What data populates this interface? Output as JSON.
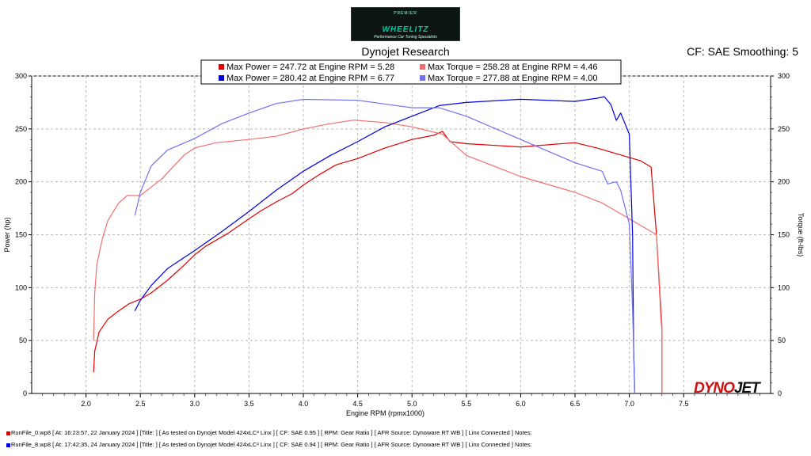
{
  "logo": {
    "top_text": "PREMIER",
    "brand": "WHEELITZ",
    "tagline": "Performance Car Tuning Specialists"
  },
  "header": {
    "title": "Dynojet Research",
    "cf_smoothing": "CF: SAE Smoothing: 5"
  },
  "footer_logo": {
    "part1": "DYNO",
    "part2": "JET"
  },
  "runs": [
    {
      "label": "RunFile_0.wp8 [ At: 16:23:57, 22 January 2024 ] [Title: ]  [ As tested on Dynojet Model 424xLC² Linx ] [ CF: SAE 0.95 ] [ RPM: Gear Ratio ] [ AFR Source: Dynoware RT WB ] [ Linx Connected ] Notes:",
      "color": "#e00000"
    },
    {
      "label": "RunFile_8.wp8 [ At: 17:42:35, 24 January 2024 ] [Title: ]  [ As tested on Dynojet Model 424xLC² Linx ] [ CF: SAE 0.94 ] [ RPM: Gear Ratio ] [ AFR Source: Dynoware RT WB ] [ Linx Connected ] Notes:",
      "color": "#0000dd"
    }
  ],
  "chart_data": {
    "type": "line",
    "xlabel": "Engine RPM (rpmx1000)",
    "ylabel": "Power (hp)",
    "y2label": "Torque (ft-lbs)",
    "xlim": [
      1.5,
      8.3
    ],
    "ylim": [
      0,
      300
    ],
    "y2lim": [
      0,
      300
    ],
    "x_ticks": [
      "2.0",
      "2.5",
      "3.0",
      "3.5",
      "4.0",
      "4.5",
      "5.0",
      "5.5",
      "6.0",
      "6.5",
      "7.0",
      "7.5"
    ],
    "y_ticks": [
      "0",
      "50",
      "100",
      "150",
      "200",
      "250",
      "300"
    ],
    "y2_ticks": [
      "0",
      "50",
      "100",
      "150",
      "200",
      "250",
      "300"
    ],
    "grid": true,
    "legend": {
      "placement": "top-center",
      "entries": [
        {
          "text": "Max Power = 247.72 at Engine RPM = 5.28",
          "color": "#e00000"
        },
        {
          "text": "Max Torque = 258.28 at Engine RPM = 4.46",
          "color": "#f07070"
        },
        {
          "text": "Max Power = 280.42 at Engine RPM = 6.77",
          "color": "#0000dd"
        },
        {
          "text": "Max Torque = 277.88 at Engine RPM = 4.00",
          "color": "#7070f0"
        }
      ]
    },
    "series": [
      {
        "name": "Max Power = 247.72 at Engine RPM = 5.28",
        "axis": "left",
        "color": "#e00000",
        "x": [
          2.07,
          2.08,
          2.12,
          2.2,
          2.3,
          2.4,
          2.5,
          2.6,
          2.75,
          2.9,
          3.0,
          3.1,
          3.2,
          3.3,
          3.5,
          3.6,
          3.75,
          3.9,
          4.0,
          4.15,
          4.3,
          4.5,
          4.75,
          5.0,
          5.2,
          5.28,
          5.35,
          5.5,
          6.0,
          6.5,
          6.7,
          6.9,
          7.1,
          7.2,
          7.25,
          7.28,
          7.29,
          7.3,
          7.3
        ],
        "y": [
          20,
          40,
          58,
          70,
          78,
          85,
          89,
          95,
          107,
          121,
          131,
          139,
          145,
          151,
          165,
          172,
          181,
          189,
          197,
          207,
          216,
          222,
          232,
          240,
          244,
          247.7,
          238,
          236,
          233,
          237,
          232,
          226,
          220,
          214,
          150,
          95,
          75,
          60,
          0
        ]
      },
      {
        "name": "Max Torque = 258.28 at Engine RPM = 4.46",
        "axis": "right",
        "color": "#f07070",
        "x": [
          2.07,
          2.08,
          2.1,
          2.15,
          2.2,
          2.3,
          2.38,
          2.5,
          2.7,
          2.9,
          3.0,
          3.2,
          3.5,
          3.75,
          4.0,
          4.25,
          4.46,
          4.75,
          5.0,
          5.28,
          5.5,
          6.0,
          6.5,
          6.75,
          7.0,
          7.25,
          7.28,
          7.3,
          7.3
        ],
        "y": [
          50,
          95,
          122,
          146,
          163,
          180,
          187,
          187,
          203,
          225,
          232,
          237,
          240,
          243,
          250,
          255,
          258.3,
          256,
          252,
          245,
          225,
          205,
          190,
          180,
          165,
          150,
          100,
          65,
          0
        ]
      },
      {
        "name": "Max Power = 280.42 at Engine RPM = 6.77",
        "axis": "left",
        "color": "#0000dd",
        "x": [
          2.45,
          2.5,
          2.6,
          2.75,
          3.0,
          3.25,
          3.5,
          3.75,
          4.0,
          4.25,
          4.5,
          4.75,
          5.0,
          5.25,
          5.5,
          6.0,
          6.5,
          6.7,
          6.77,
          6.83,
          6.88,
          6.92,
          7.0,
          7.03,
          7.04,
          7.05
        ],
        "y": [
          78,
          88,
          102,
          118,
          135,
          153,
          172,
          192,
          210,
          225,
          238,
          252,
          262,
          272,
          275,
          278,
          276,
          279,
          280.4,
          273,
          258,
          265,
          245,
          150,
          40,
          0
        ]
      },
      {
        "name": "Max Torque = 277.88 at Engine RPM = 4.00",
        "axis": "right",
        "color": "#7070f0",
        "x": [
          2.45,
          2.5,
          2.6,
          2.75,
          3.0,
          3.25,
          3.5,
          3.75,
          4.0,
          4.5,
          5.0,
          5.25,
          5.5,
          6.0,
          6.5,
          6.75,
          6.8,
          6.88,
          6.92,
          7.0,
          7.03,
          7.05
        ],
        "y": [
          168,
          190,
          215,
          230,
          241,
          255,
          265,
          274,
          277.9,
          277,
          270,
          270,
          262,
          240,
          218,
          210,
          198,
          200,
          192,
          160,
          80,
          0
        ]
      }
    ]
  }
}
